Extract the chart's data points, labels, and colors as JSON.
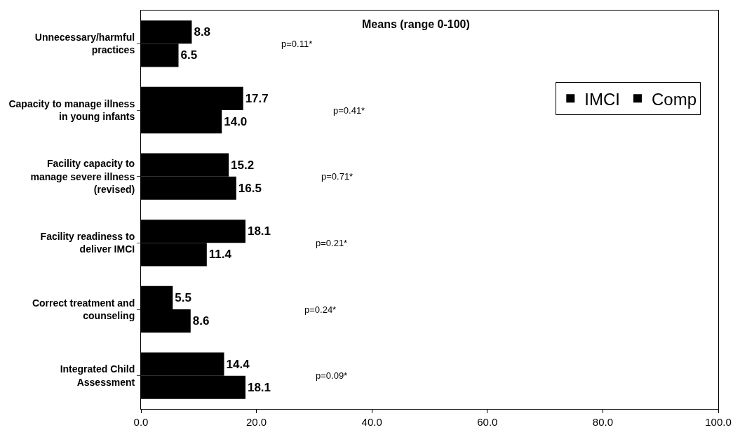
{
  "chart_data": {
    "type": "bar",
    "orientation": "horizontal",
    "categories": [
      "Unnecessary/harmful practices",
      "Capacity to manage illness in young infants",
      "Facility capacity to manage severe illness (revised)",
      "Facility readiness to deliver IMCI",
      "Correct treatment and counseling",
      "Integrated Child Assessment"
    ],
    "series": [
      {
        "name": "IMCI",
        "color": "#000000",
        "values": [
          8.8,
          17.7,
          15.2,
          18.1,
          5.5,
          14.4
        ],
        "value_labels": [
          "8.8",
          "17.7",
          "15.2",
          "18.1",
          "5.5",
          "14.4"
        ]
      },
      {
        "name": "Comp",
        "color": "#000000",
        "values": [
          6.5,
          14.0,
          16.5,
          11.4,
          8.6,
          18.1
        ],
        "value_labels": [
          "6.5",
          "14.0",
          "16.5",
          "11.4",
          "8.6",
          "18.1"
        ]
      }
    ],
    "xlim": [
      0,
      100
    ],
    "xticks": [
      {
        "value": 0,
        "label": "0.0"
      },
      {
        "value": 20,
        "label": "20.0"
      },
      {
        "value": 40,
        "label": "40.0"
      },
      {
        "value": 60,
        "label": "60.0"
      },
      {
        "value": 80,
        "label": "80.0"
      },
      {
        "value": 100,
        "label": "100.0"
      }
    ],
    "legend": "top right",
    "annotations": [
      "Means (range 0-100)",
      "p=0.11*",
      "p=0.41*",
      "p=0.71*",
      "p=0.21*",
      "p=0.24*",
      "p=0.09*"
    ]
  }
}
